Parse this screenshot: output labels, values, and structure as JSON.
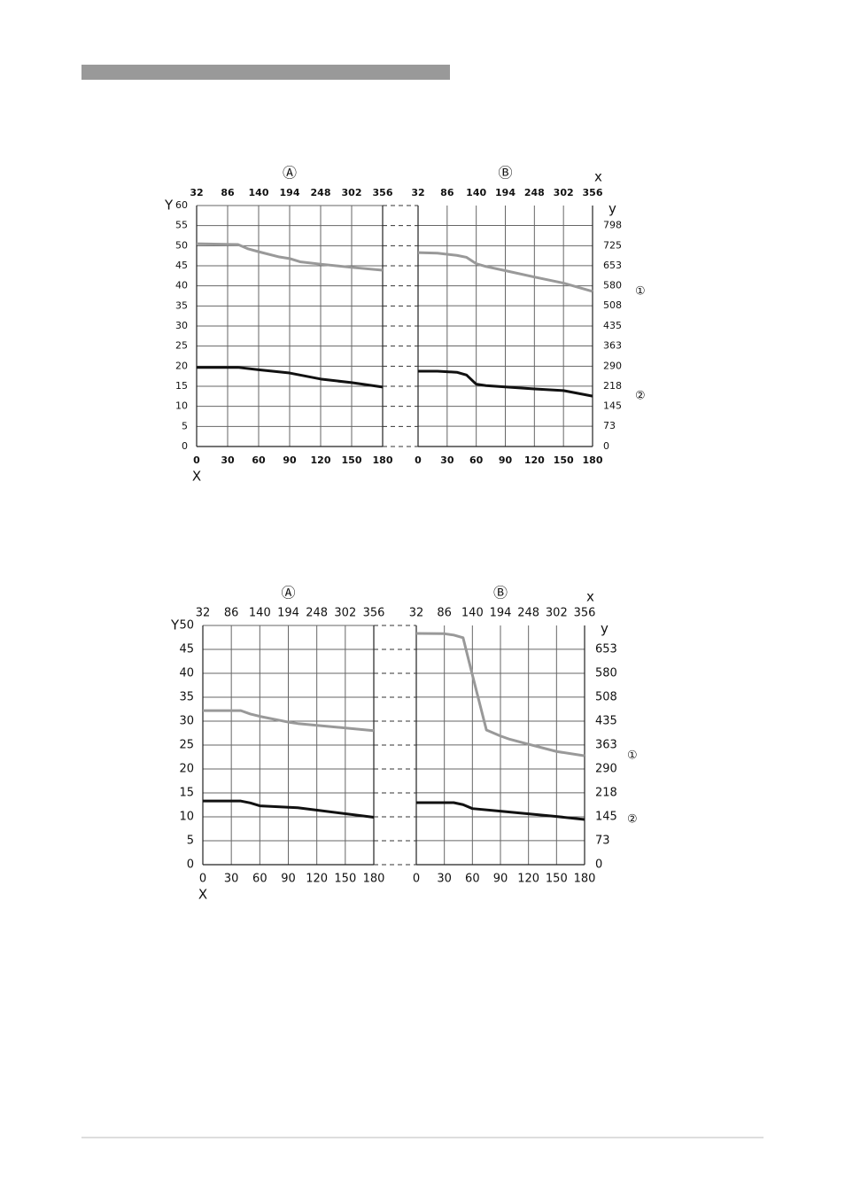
{
  "chart_data": [
    {
      "type": "line",
      "panel": "Ⓐ",
      "x_label": "X",
      "y_label": "Y",
      "xlim": [
        0,
        180
      ],
      "xticks": [
        0,
        30,
        60,
        90,
        120,
        150,
        180
      ],
      "x2lim": [
        32,
        356
      ],
      "x2ticks": [
        32,
        86,
        140,
        194,
        248,
        302,
        356
      ],
      "ylim": [
        0,
        60
      ],
      "yticks": [
        0,
        5,
        10,
        15,
        20,
        25,
        30,
        35,
        40,
        45,
        50,
        55,
        60
      ],
      "grid": true,
      "series": [
        {
          "color": "#999999",
          "x": [
            0,
            40,
            50,
            60,
            80,
            90,
            100,
            120,
            150,
            180
          ],
          "values": [
            50.5,
            50.3,
            49.2,
            48.5,
            47.2,
            46.8,
            46.0,
            45.4,
            44.6,
            43.9
          ]
        },
        {
          "color": "#111111",
          "x": [
            0,
            40,
            60,
            90,
            100,
            120,
            150,
            180
          ],
          "values": [
            19.7,
            19.7,
            19.1,
            18.3,
            17.8,
            16.8,
            15.9,
            14.8
          ]
        }
      ]
    },
    {
      "type": "line",
      "panel": "Ⓑ",
      "x2_label": "x",
      "y_label": "y",
      "y_axis_side": "right",
      "xlim": [
        0,
        180
      ],
      "xticks": [
        0,
        30,
        60,
        90,
        120,
        150,
        180
      ],
      "x2lim": [
        32,
        356
      ],
      "x2ticks": [
        32,
        86,
        140,
        194,
        248,
        302,
        356
      ],
      "ylim": [
        0,
        870
      ],
      "yticks": [
        0,
        73,
        145,
        218,
        290,
        363,
        435,
        508,
        580,
        653,
        725,
        798
      ],
      "grid": true,
      "series": [
        {
          "name": "①",
          "color": "#999999",
          "x": [
            0,
            20,
            40,
            50,
            60,
            70,
            90,
            120,
            150,
            180
          ],
          "values": [
            700,
            698,
            690,
            683,
            660,
            650,
            635,
            612,
            590,
            560
          ]
        },
        {
          "name": "②",
          "color": "#111111",
          "x": [
            0,
            20,
            40,
            50,
            60,
            70,
            90,
            120,
            150,
            180
          ],
          "values": [
            272,
            272,
            268,
            258,
            225,
            220,
            215,
            208,
            202,
            182
          ]
        }
      ]
    },
    {
      "type": "line",
      "panel": "Ⓐ",
      "x_label": "X",
      "y_label": "Y",
      "xlim": [
        0,
        180
      ],
      "xticks": [
        0,
        30,
        60,
        90,
        120,
        150,
        180
      ],
      "x2lim": [
        32,
        356
      ],
      "x2ticks": [
        32,
        86,
        140,
        194,
        248,
        302,
        356
      ],
      "ylim": [
        0,
        50
      ],
      "yticks": [
        0,
        5,
        10,
        15,
        20,
        25,
        30,
        35,
        40,
        45,
        50
      ],
      "grid": true,
      "series": [
        {
          "color": "#999999",
          "x": [
            0,
            40,
            50,
            60,
            90,
            100,
            180
          ],
          "values": [
            32.2,
            32.2,
            31.5,
            31.0,
            29.8,
            29.5,
            28.0
          ]
        },
        {
          "color": "#111111",
          "x": [
            0,
            40,
            50,
            60,
            100,
            180
          ],
          "values": [
            13.3,
            13.3,
            12.9,
            12.3,
            11.9,
            9.9
          ]
        }
      ]
    },
    {
      "type": "line",
      "panel": "Ⓑ",
      "x2_label": "x",
      "y_label": "y",
      "y_axis_side": "right",
      "xlim": [
        0,
        180
      ],
      "xticks": [
        0,
        30,
        60,
        90,
        120,
        150,
        180
      ],
      "x2lim": [
        32,
        356
      ],
      "x2ticks": [
        32,
        86,
        140,
        194,
        248,
        302,
        356
      ],
      "ylim": [
        0,
        725
      ],
      "yticks": [
        0,
        73,
        145,
        218,
        290,
        363,
        435,
        508,
        580,
        653
      ],
      "grid": true,
      "series": [
        {
          "name": "①",
          "color": "#999999",
          "x": [
            0,
            30,
            40,
            50,
            60,
            75,
            90,
            100,
            120,
            150,
            180
          ],
          "values": [
            701,
            700,
            696,
            688,
            575,
            408,
            390,
            380,
            365,
            343,
            330
          ]
        },
        {
          "name": "②",
          "color": "#111111",
          "x": [
            0,
            40,
            50,
            60,
            90,
            120,
            150,
            180
          ],
          "values": [
            188,
            188,
            182,
            170,
            162,
            154,
            146,
            137
          ]
        }
      ]
    }
  ]
}
